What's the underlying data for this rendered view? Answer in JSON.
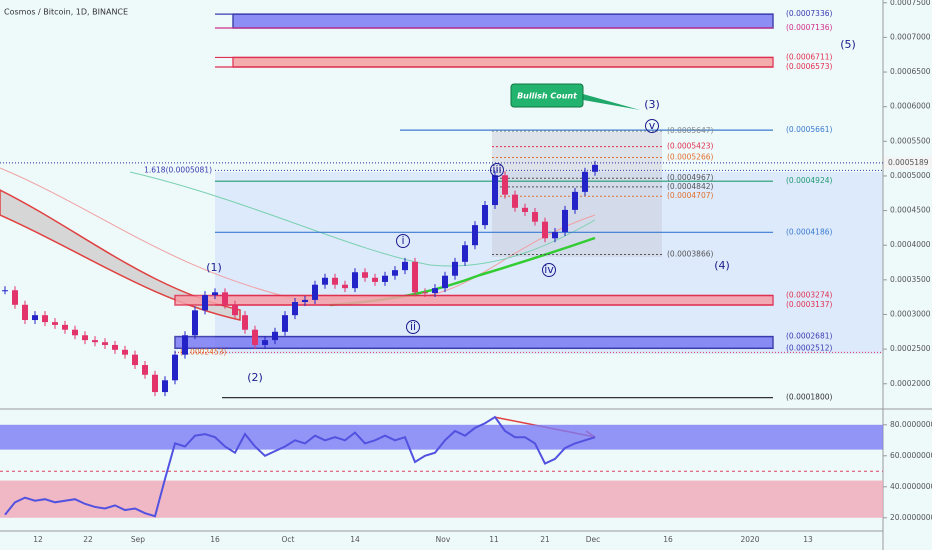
{
  "header": {
    "title": "Cosmos / Bitcoin, 1D, BINANCE"
  },
  "chart_data": [
    {
      "type": "candlestick",
      "closes": [
        0.000335,
        0.000314,
        0.000292,
        0.000299,
        0.000289,
        0.000285,
        0.000278,
        0.00027,
        0.000263,
        0.00026,
        0.000256,
        0.000249,
        0.000242,
        0.000227,
        0.000213,
        0.000188,
        0.000205,
        0.000242,
        0.00027,
        0.000306,
        0.000328,
        0.000332,
        0.000314,
        0.000299,
        0.000278,
        0.000256,
        0.000263,
        0.000275,
        0.000299,
        0.000318,
        0.000321,
        0.000343,
        0.000353,
        0.000343,
        0.000338,
        0.000361,
        0.000353,
        0.000347,
        0.000356,
        0.000364,
        0.000376,
        0.000332,
        0.000331,
        0.000338,
        0.000356,
        0.000376,
        0.0004,
        0.000429,
        0.000458,
        0.000501,
        0.000473,
        0.000454,
        0.000448,
        0.000434,
        0.00041,
        0.000419,
        0.000451,
        0.000477,
        0.000506,
        0.000516
      ],
      "up_color": "#2323c8",
      "down_color": "#e2336b",
      "ylim": [
        0.000165,
        0.000754
      ],
      "yticks": [
        {
          "value": 0.00075,
          "label": "0.0007500"
        },
        {
          "value": 0.0007,
          "label": "0.0007000"
        },
        {
          "value": 0.00065,
          "label": "0.0006500"
        },
        {
          "value": 0.0006,
          "label": "0.0006000"
        },
        {
          "value": 0.00055,
          "label": "0.0005500"
        },
        {
          "value": 0.0005,
          "label": "0.0005000"
        },
        {
          "value": 0.00045,
          "label": "0.0004500"
        },
        {
          "value": 0.0004,
          "label": "0.0004000"
        },
        {
          "value": 0.00035,
          "label": "0.0003500"
        },
        {
          "value": 0.0003,
          "label": "0.0003000"
        },
        {
          "value": 0.00025,
          "label": "0.0002500"
        },
        {
          "value": 0.0002,
          "label": "0.0002000"
        }
      ],
      "xticks": [
        "12",
        "22",
        "Sep",
        "16",
        "Oct",
        "14",
        "Nov",
        "11",
        "21",
        "Dec",
        "16",
        "2020",
        "13"
      ],
      "last_price": {
        "value": 0.0005189,
        "label": "0.0005189"
      },
      "levels": [
        {
          "value": 0.0007336,
          "label": "(0.0007336)",
          "color": "#3a3ab0"
        },
        {
          "value": 0.0007136,
          "label": "(0.0007136)",
          "color": "#d0308a"
        },
        {
          "value": 0.0006711,
          "label": "(0.0006711)",
          "color": "#e03050"
        },
        {
          "value": 0.0006573,
          "label": "(0.0006573)",
          "color": "#e03050"
        },
        {
          "value": 0.0005661,
          "label": "(0.0005661)",
          "color": "#3a7ad0"
        },
        {
          "value": 0.0004924,
          "label": "(0.0004924)",
          "color": "#229a70"
        },
        {
          "value": 0.0004186,
          "label": "(0.0004186)",
          "color": "#3a7ad0"
        },
        {
          "value": 0.0003274,
          "label": "(0.0003274)",
          "color": "#e03050"
        },
        {
          "value": 0.0003137,
          "label": "(0.0003137)",
          "color": "#e03050"
        },
        {
          "value": 0.0002681,
          "label": "(0.0002681)",
          "color": "#3a3ab0"
        },
        {
          "value": 0.0002512,
          "label": "(0.0002512)",
          "color": "#3a3ab0"
        },
        {
          "value": 0.00018,
          "label": "(0.0001800)",
          "color": "#333"
        }
      ],
      "fib_levels": [
        {
          "value": 0.0005647,
          "label": "(0.0005647)",
          "color": "#888"
        },
        {
          "value": 0.0005423,
          "label": "(0.0005423)",
          "color": "#e03050"
        },
        {
          "value": 0.0005266,
          "label": "(0.0005266)",
          "color": "#e07030"
        },
        {
          "value": 0.0004967,
          "label": "(0.0004967)",
          "color": "#555"
        },
        {
          "value": 0.0004842,
          "label": "(0.0004842)",
          "color": "#555"
        },
        {
          "value": 0.0004707,
          "label": "(0.0004707)",
          "color": "#e07030"
        },
        {
          "value": 0.0003866,
          "label": "(0.0003866)",
          "color": "#555"
        }
      ],
      "extension": {
        "value": 0.0005081,
        "label": "1.618(0.0005081)"
      },
      "low_mark": {
        "value": 0.0002453,
        "label": "(0.0002453)"
      },
      "waves": [
        "(1)",
        "(2)",
        "(3)",
        "(4)",
        "(5)",
        "i",
        "ii",
        "iii",
        "iv",
        "v"
      ],
      "callout": "Bullish Count"
    },
    {
      "type": "line",
      "values": [
        22,
        30,
        33,
        31,
        32,
        30,
        31,
        32,
        29,
        27,
        26,
        28,
        25,
        26,
        23,
        21,
        45,
        68,
        66,
        73,
        74,
        72,
        66,
        62,
        74,
        66,
        60,
        63,
        66,
        70,
        68,
        73,
        70,
        72,
        70,
        75,
        68,
        70,
        73,
        70,
        72,
        56,
        60,
        62,
        70,
        76,
        73,
        78,
        81,
        85,
        76,
        72,
        72,
        68,
        55,
        58,
        65,
        68,
        70,
        72
      ],
      "color": "#5252e0",
      "ylim": [
        12,
        90
      ],
      "yticks": [
        {
          "value": 80,
          "label": "80.0000000"
        },
        {
          "value": 60,
          "label": "60.0000000"
        },
        {
          "value": 40,
          "label": "40.0000000"
        },
        {
          "value": 20,
          "label": "20.0000000"
        }
      ]
    }
  ]
}
